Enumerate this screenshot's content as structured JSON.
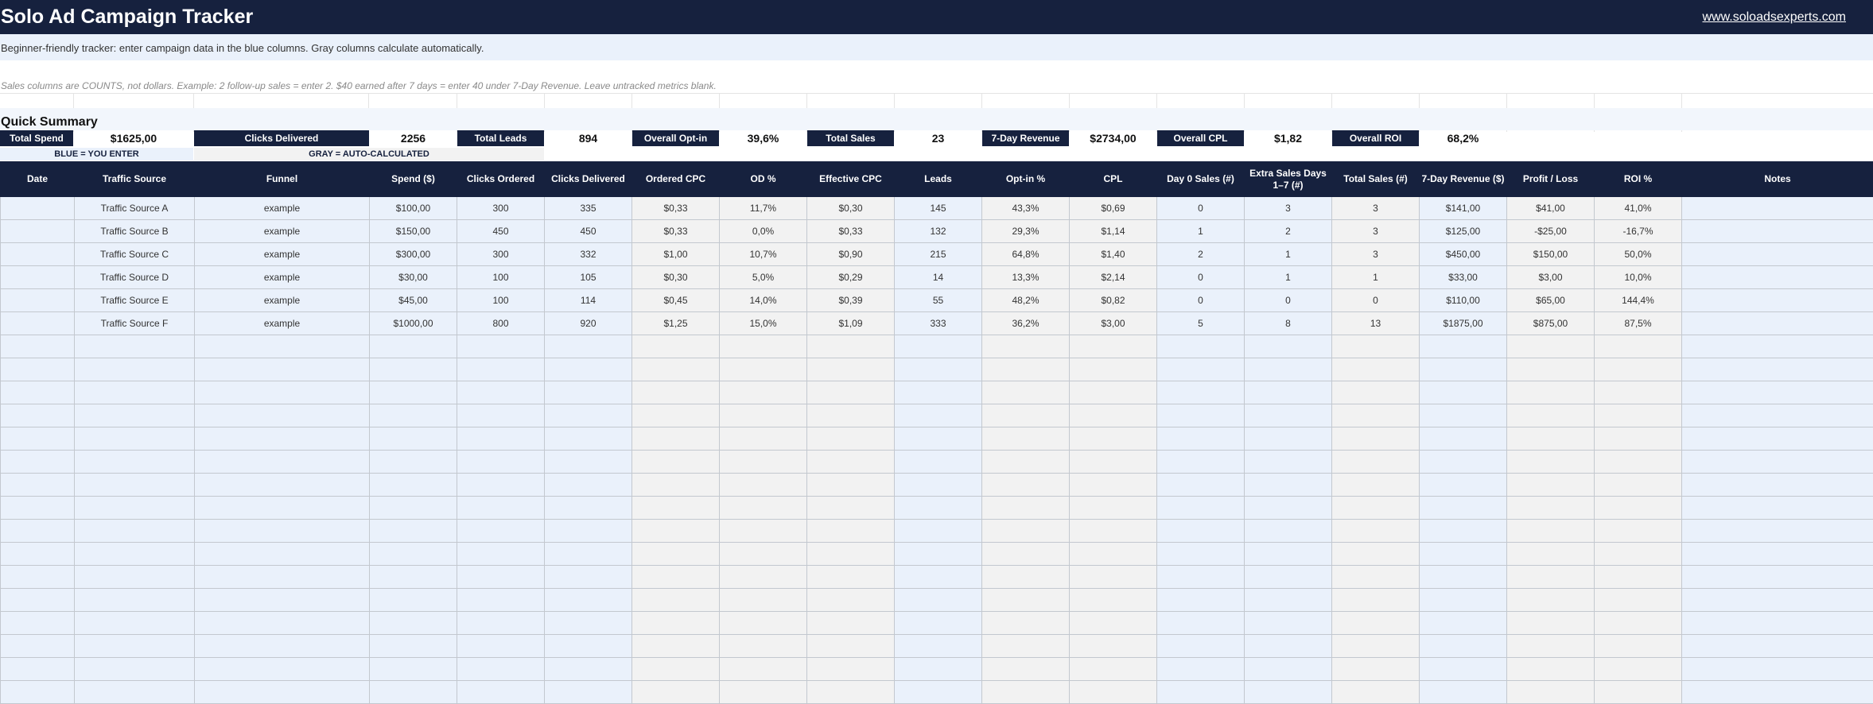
{
  "header": {
    "title": "Solo Ad Campaign Tracker",
    "link": "www.soloadsexperts.com",
    "subtitle": "Beginner-friendly tracker: enter campaign data in the blue columns. Gray columns calculate automatically.",
    "note": "Sales columns are COUNTS, not dollars. Example: 2 follow-up sales = enter 2. $40 earned after 7 days = enter 40 under 7-Day Revenue. Leave untracked metrics blank."
  },
  "summary": {
    "title": "Quick Summary",
    "items": [
      {
        "label": "Total Spend",
        "value": "$1625,00"
      },
      {
        "label": "Clicks Delivered",
        "value": "2256"
      },
      {
        "label": "Total Leads",
        "value": "894"
      },
      {
        "label": "Overall Opt-in",
        "value": "39,6%"
      },
      {
        "label": "Total Sales",
        "value": "23"
      },
      {
        "label": "7-Day Revenue",
        "value": "$2734,00"
      },
      {
        "label": "Overall CPL",
        "value": "$1,82"
      },
      {
        "label": "Overall ROI",
        "value": "68,2%"
      }
    ]
  },
  "legend": {
    "blue": "BLUE = YOU ENTER",
    "gray": "GRAY = AUTO-CALCULATED"
  },
  "table": {
    "columns": [
      "Date",
      "Traffic Source",
      "Funnel",
      "Spend ($)",
      "Clicks Ordered",
      "Clicks Delivered",
      "Ordered CPC",
      "OD %",
      "Effective CPC",
      "Leads",
      "Opt-in %",
      "CPL",
      "Day 0 Sales (#)",
      "Extra Sales Days 1–7 (#)",
      "Total Sales (#)",
      "7-Day Revenue ($)",
      "Profit / Loss",
      "ROI %",
      "Notes"
    ],
    "col_types": [
      "b",
      "b",
      "b",
      "b",
      "b",
      "b",
      "g",
      "g",
      "g",
      "b",
      "g",
      "g",
      "b",
      "b",
      "g",
      "b",
      "g",
      "g",
      "b"
    ],
    "rows": [
      [
        "",
        "Traffic Source A",
        "example",
        "$100,00",
        "300",
        "335",
        "$0,33",
        "11,7%",
        "$0,30",
        "145",
        "43,3%",
        "$0,69",
        "0",
        "3",
        "3",
        "$141,00",
        "$41,00",
        "41,0%",
        ""
      ],
      [
        "",
        "Traffic Source B",
        "example",
        "$150,00",
        "450",
        "450",
        "$0,33",
        "0,0%",
        "$0,33",
        "132",
        "29,3%",
        "$1,14",
        "1",
        "2",
        "3",
        "$125,00",
        "-$25,00",
        "-16,7%",
        ""
      ],
      [
        "",
        "Traffic Source C",
        "example",
        "$300,00",
        "300",
        "332",
        "$1,00",
        "10,7%",
        "$0,90",
        "215",
        "64,8%",
        "$1,40",
        "2",
        "1",
        "3",
        "$450,00",
        "$150,00",
        "50,0%",
        ""
      ],
      [
        "",
        "Traffic Source D",
        "example",
        "$30,00",
        "100",
        "105",
        "$0,30",
        "5,0%",
        "$0,29",
        "14",
        "13,3%",
        "$2,14",
        "0",
        "1",
        "1",
        "$33,00",
        "$3,00",
        "10,0%",
        ""
      ],
      [
        "",
        "Traffic Source E",
        "example",
        "$45,00",
        "100",
        "114",
        "$0,45",
        "14,0%",
        "$0,39",
        "55",
        "48,2%",
        "$0,82",
        "0",
        "0",
        "0",
        "$110,00",
        "$65,00",
        "144,4%",
        ""
      ],
      [
        "",
        "Traffic Source F",
        "example",
        "$1000,00",
        "800",
        "920",
        "$1,25",
        "15,0%",
        "$1,09",
        "333",
        "36,2%",
        "$3,00",
        "5",
        "8",
        "13",
        "$1875,00",
        "$875,00",
        "87,5%",
        ""
      ]
    ],
    "empty_rows": 16
  },
  "colors": {
    "header_navy": "#16213e",
    "input_blue": "#eaf1fb",
    "calc_gray": "#f2f2f2"
  }
}
